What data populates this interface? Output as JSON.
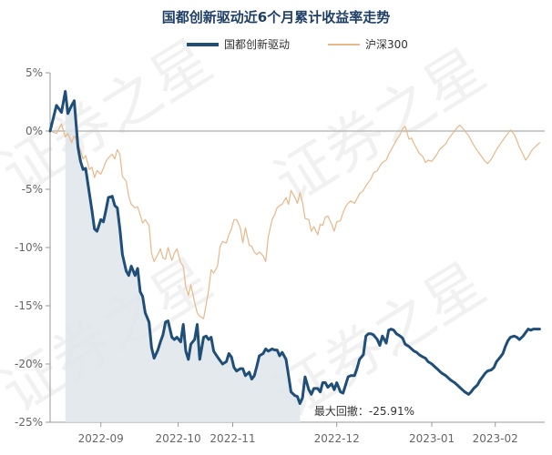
{
  "chart_data": {
    "type": "line",
    "title": "国都创新驱动近6个月累计收益率走势",
    "legend_position": "top",
    "grid": false,
    "ylim": [
      -25,
      5
    ],
    "yticks": [
      "5%",
      "0%",
      "-5%",
      "-10%",
      "-15%",
      "-20%",
      "-25%"
    ],
    "ytick_values": [
      5,
      0,
      -5,
      -10,
      -15,
      -20,
      -25
    ],
    "xticks": [
      "2022-09",
      "2022-10",
      "2022-11",
      "2022-12",
      "2023-01",
      "2023-02"
    ],
    "xtick_days": [
      40,
      101,
      144,
      226,
      301,
      351
    ],
    "xlim_days": [
      0,
      390
    ],
    "watermark": "证券之星",
    "colors": {
      "fund": "#1f4e79",
      "index": "#e8b888",
      "fill": "#dfe5ea",
      "zero": "#bbbbbb"
    },
    "annotation": "最大回撤：-25.91%",
    "series": [
      {
        "name": "国都创新驱动",
        "color": "#1f4e79",
        "x": [
          0,
          5,
          9,
          12,
          14,
          17,
          19,
          22,
          24,
          26,
          28,
          31,
          33,
          35,
          37,
          40,
          42,
          44,
          46,
          49,
          51,
          53,
          55,
          57,
          60,
          62,
          64,
          67,
          69,
          71,
          73,
          75,
          78,
          80,
          82,
          85,
          87,
          89,
          91,
          93,
          96,
          98,
          100,
          103,
          105,
          107,
          109,
          111,
          114,
          116,
          118,
          121,
          123,
          125,
          127,
          129,
          132,
          134,
          136,
          139,
          141,
          143,
          145,
          147,
          150,
          152,
          154,
          157,
          159,
          161,
          163,
          165,
          168,
          170,
          172,
          175,
          177,
          179,
          181,
          183,
          186,
          188,
          190,
          193,
          195,
          197,
          199,
          201,
          204,
          206,
          208,
          211,
          213,
          215,
          217,
          219,
          222,
          224,
          226,
          229,
          231,
          233,
          235,
          237,
          240,
          242,
          244,
          247,
          249,
          251,
          253,
          255,
          258,
          260,
          262,
          265,
          267,
          269,
          271,
          273,
          276,
          278,
          280,
          283,
          285,
          287,
          289,
          291,
          294,
          296,
          298,
          301,
          303,
          305,
          307,
          309,
          312,
          314,
          316,
          319,
          321,
          323,
          325,
          327,
          330,
          332,
          334,
          337,
          339,
          341,
          343,
          345,
          348,
          350,
          352,
          355,
          357,
          359,
          361,
          363,
          366,
          368,
          370,
          373,
          375,
          377,
          379,
          381,
          384,
          386
        ],
        "y": [
          0.0,
          2.2,
          1.6,
          3.4,
          1.5,
          2.2,
          2.6,
          -1.4,
          -2.6,
          -3.3,
          -3.2,
          -5.4,
          -6.8,
          -8.4,
          -8.6,
          -7.6,
          -7.8,
          -6.8,
          -5.7,
          -5.6,
          -6.4,
          -6.6,
          -8.4,
          -10.6,
          -12.0,
          -12.4,
          -11.6,
          -12.4,
          -11.8,
          -13.8,
          -14.2,
          -15.6,
          -16.4,
          -18.6,
          -19.5,
          -18.8,
          -18.1,
          -17.5,
          -16.4,
          -16.3,
          -17.7,
          -17.9,
          -17.7,
          -18.1,
          -16.6,
          -18.9,
          -19.6,
          -18.3,
          -17.9,
          -16.6,
          -19.6,
          -17.7,
          -17.6,
          -17.9,
          -17.7,
          -18.9,
          -19.4,
          -19.7,
          -20.0,
          -19.8,
          -19.1,
          -19.4,
          -20.3,
          -20.6,
          -20.4,
          -20.4,
          -21.0,
          -20.7,
          -21.3,
          -21.0,
          -20.2,
          -19.3,
          -19.1,
          -18.7,
          -18.9,
          -18.7,
          -18.8,
          -18.8,
          -19.3,
          -19.0,
          -19.6,
          -21.0,
          -22.4,
          -22.7,
          -22.8,
          -23.4,
          -22.9,
          -21.1,
          -22.2,
          -22.6,
          -22.1,
          -22.1,
          -22.4,
          -21.6,
          -21.6,
          -22.0,
          -21.7,
          -22.2,
          -21.6,
          -22.4,
          -22.5,
          -21.8,
          -21.1,
          -21.0,
          -21.0,
          -20.4,
          -19.6,
          -19.2,
          -17.6,
          -17.4,
          -17.4,
          -17.5,
          -17.9,
          -18.4,
          -17.6,
          -18.2,
          -17.1,
          -17.0,
          -17.1,
          -17.4,
          -17.6,
          -17.8,
          -18.3,
          -18.5,
          -18.7,
          -18.9,
          -19.0,
          -19.2,
          -19.4,
          -19.5,
          -19.8,
          -20.0,
          -20.2,
          -20.4,
          -20.6,
          -20.8,
          -21.0,
          -21.2,
          -21.4,
          -21.6,
          -21.8,
          -22.0,
          -22.2,
          -22.4,
          -22.6,
          -22.4,
          -22.1,
          -21.8,
          -21.4,
          -21.1,
          -20.8,
          -20.6,
          -20.5,
          -20.3,
          -19.8,
          -19.4,
          -19.1,
          -18.5,
          -18.0,
          -17.7,
          -17.6,
          -17.7,
          -17.9,
          -17.6,
          -17.3,
          -17.0,
          -17.1,
          -17.0,
          -17.0,
          -17.0
        ]
      },
      {
        "name": "沪深300",
        "color": "#e8b888",
        "x": [
          0,
          5,
          9,
          12,
          14,
          17,
          19,
          22,
          24,
          26,
          28,
          31,
          33,
          35,
          37,
          40,
          42,
          44,
          46,
          49,
          51,
          53,
          55,
          57,
          60,
          62,
          64,
          67,
          69,
          71,
          73,
          75,
          78,
          80,
          82,
          85,
          87,
          89,
          91,
          93,
          96,
          98,
          100,
          103,
          105,
          107,
          109,
          111,
          114,
          116,
          118,
          121,
          123,
          125,
          127,
          129,
          132,
          134,
          136,
          139,
          141,
          143,
          145,
          147,
          150,
          152,
          154,
          157,
          159,
          161,
          163,
          165,
          168,
          170,
          172,
          175,
          177,
          179,
          181,
          183,
          186,
          188,
          190,
          193,
          195,
          197,
          199,
          201,
          204,
          206,
          208,
          211,
          213,
          215,
          217,
          219,
          222,
          224,
          226,
          229,
          231,
          233,
          235,
          237,
          240,
          242,
          244,
          247,
          249,
          251,
          253,
          255,
          258,
          260,
          262,
          265,
          267,
          269,
          271,
          273,
          276,
          278,
          280,
          283,
          285,
          287,
          289,
          291,
          294,
          296,
          298,
          301,
          303,
          305,
          307,
          309,
          312,
          314,
          316,
          319,
          321,
          323,
          325,
          327,
          330,
          332,
          334,
          337,
          339,
          341,
          343,
          345,
          348,
          350,
          352,
          355,
          357,
          359,
          361,
          363,
          366,
          368,
          370,
          373,
          375,
          377,
          379,
          381,
          384,
          386
        ],
        "y": [
          0.0,
          -0.2,
          0.6,
          -0.5,
          -0.2,
          -1.0,
          -0.4,
          -1.0,
          -1.7,
          -2.4,
          -2.1,
          -3.3,
          -3.1,
          -4.0,
          -3.4,
          -3.7,
          -3.2,
          -2.6,
          -2.3,
          -2.0,
          -2.4,
          -1.6,
          -2.0,
          -3.9,
          -4.3,
          -5.6,
          -6.3,
          -6.6,
          -6.5,
          -7.2,
          -7.9,
          -7.6,
          -8.1,
          -10.5,
          -11.2,
          -10.6,
          -10.1,
          -10.9,
          -11.0,
          -10.0,
          -11.1,
          -10.5,
          -10.1,
          -11.3,
          -11.6,
          -13.4,
          -14.1,
          -13.2,
          -14.7,
          -15.6,
          -15.9,
          -16.1,
          -14.9,
          -13.7,
          -11.9,
          -12.2,
          -11.6,
          -9.9,
          -9.5,
          -9.6,
          -8.9,
          -8.4,
          -7.6,
          -7.6,
          -8.3,
          -9.6,
          -8.3,
          -9.8,
          -9.9,
          -10.4,
          -10.6,
          -10.4,
          -10.7,
          -11.2,
          -9.1,
          -7.6,
          -7.2,
          -6.6,
          -6.4,
          -6.3,
          -5.7,
          -6.3,
          -5.1,
          -5.7,
          -6.2,
          -5.3,
          -6.1,
          -7.5,
          -7.6,
          -8.6,
          -8.2,
          -8.9,
          -8.0,
          -8.1,
          -7.4,
          -7.3,
          -8.0,
          -8.6,
          -7.8,
          -7.7,
          -7.0,
          -6.5,
          -6.2,
          -6.0,
          -6.2,
          -5.8,
          -5.4,
          -5.1,
          -4.7,
          -4.4,
          -4.1,
          -3.6,
          -3.4,
          -3.0,
          -2.7,
          -2.5,
          -2.0,
          -1.6,
          -1.2,
          -0.8,
          -0.3,
          0.2,
          0.4,
          -0.7,
          -0.6,
          -1.1,
          -1.5,
          -1.9,
          -2.2,
          -2.7,
          -2.5,
          -2.6,
          -2.3,
          -2.0,
          -1.6,
          -1.4,
          -1.1,
          -0.7,
          -0.4,
          0.0,
          0.3,
          0.5,
          0.3,
          0.0,
          -0.4,
          -0.8,
          -1.2,
          -1.7,
          -2.0,
          -2.3,
          -2.6,
          -2.8,
          -2.4,
          -2.0,
          -1.6,
          -1.1,
          -0.8,
          -0.5,
          -0.2,
          0.1,
          -0.3,
          -0.8,
          -1.4,
          -2.0,
          -2.5,
          -2.2,
          -1.8,
          -1.5,
          -1.2,
          -1.0
        ]
      }
    ]
  }
}
